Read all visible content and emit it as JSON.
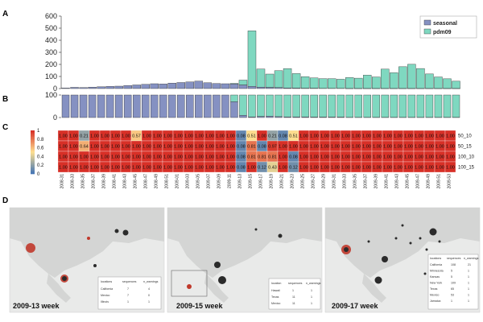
{
  "panel_letters": {
    "a": "A",
    "b": "B",
    "c": "C",
    "d": "D"
  },
  "colors": {
    "seasonal": "#8591c2",
    "pdm09": "#7fd8c0",
    "heat_high": "#d73027",
    "heat_mid": "#fee090",
    "heat_low": "#4575b4",
    "map_bg": "#e9eae9",
    "bubble_red": "#c0392b",
    "bubble_dark": "#2b2b2b"
  },
  "chart_data": [
    {
      "type": "bar",
      "id": "A",
      "stacked": true,
      "ylim": [
        0,
        600
      ],
      "yticks": [
        0,
        100,
        200,
        300,
        400,
        500,
        600
      ],
      "legend": "top-right",
      "series": [
        {
          "name": "seasonal",
          "values": [
            5,
            10,
            8,
            12,
            15,
            18,
            20,
            25,
            30,
            35,
            40,
            38,
            45,
            50,
            55,
            62,
            48,
            42,
            40,
            38,
            30,
            18,
            12,
            10,
            8,
            5,
            4,
            3,
            3,
            2,
            2,
            2,
            1,
            1,
            1,
            1,
            1,
            1,
            1,
            1,
            1,
            1,
            1,
            1,
            1
          ]
        },
        {
          "name": "pdm09",
          "values": [
            0,
            0,
            0,
            0,
            0,
            0,
            0,
            0,
            0,
            0,
            0,
            0,
            0,
            0,
            0,
            0,
            0,
            0,
            0,
            5,
            40,
            460,
            150,
            110,
            140,
            160,
            120,
            95,
            85,
            80,
            80,
            75,
            90,
            85,
            110,
            95,
            160,
            130,
            180,
            200,
            165,
            120,
            95,
            80,
            60
          ]
        }
      ]
    },
    {
      "type": "bar",
      "id": "B",
      "stacked": true,
      "ylim": [
        0,
        100
      ],
      "yticks": [
        0,
        100
      ],
      "series": [
        {
          "name": "seasonal",
          "values": [
            100,
            100,
            100,
            100,
            100,
            100,
            100,
            100,
            100,
            100,
            100,
            100,
            100,
            100,
            100,
            100,
            100,
            100,
            100,
            70,
            10,
            3,
            5,
            6,
            4,
            3,
            3,
            3,
            2,
            2,
            2,
            2,
            1,
            1,
            1,
            1,
            1,
            1,
            1,
            1,
            1,
            1,
            1,
            1,
            1
          ]
        },
        {
          "name": "pdm09",
          "values": [
            0,
            0,
            0,
            0,
            0,
            0,
            0,
            0,
            0,
            0,
            0,
            0,
            0,
            0,
            0,
            0,
            0,
            0,
            0,
            30,
            90,
            97,
            95,
            94,
            96,
            97,
            97,
            97,
            98,
            98,
            98,
            98,
            99,
            99,
            99,
            99,
            99,
            99,
            99,
            99,
            99,
            99,
            99,
            99,
            99
          ]
        }
      ]
    },
    {
      "type": "heatmap",
      "id": "C",
      "rows": [
        "50_10",
        "50_15",
        "100_10",
        "100_15"
      ],
      "columns": [
        "2008-31",
        "2008-33",
        "2008-35",
        "2008-37",
        "2008-39",
        "2008-41",
        "2008-43",
        "2008-45",
        "2008-47",
        "2008-49",
        "2008-51",
        "2009-01",
        "2009-03",
        "2009-05",
        "2009-07",
        "2009-09",
        "2009-11",
        "2009-13",
        "2009-15",
        "2009-17",
        "2009-19",
        "2009-21",
        "2009-23",
        "2009-25",
        "2009-27",
        "2009-29",
        "2009-31",
        "2009-33",
        "2009-35",
        "2009-37",
        "2009-39",
        "2009-41",
        "2009-43",
        "2009-45",
        "2009-47",
        "2009-49",
        "2009-51",
        "2009-53"
      ],
      "colorbar_ticks": [
        1,
        0.8,
        0.6,
        0.4,
        0.2,
        0
      ],
      "values": [
        [
          1,
          1,
          0.21,
          1,
          1,
          1,
          1,
          0.57,
          1,
          1,
          1,
          1,
          1,
          1,
          1,
          1,
          1,
          0.08,
          0.51,
          1,
          0.21,
          0.08,
          0.51,
          1,
          1,
          1,
          1,
          1,
          1,
          1,
          1,
          1,
          1,
          1,
          1,
          1,
          1,
          1
        ],
        [
          1,
          1,
          0.64,
          1,
          1,
          1,
          1,
          1,
          1,
          1,
          1,
          1,
          1,
          1,
          1,
          1,
          1,
          0.08,
          0.81,
          0.08,
          0.97,
          1,
          1,
          1,
          1,
          1,
          1,
          1,
          1,
          1,
          1,
          1,
          1,
          1,
          1,
          1,
          1,
          1
        ],
        [
          1,
          1,
          1,
          1,
          1,
          1,
          1,
          1,
          1,
          1,
          1,
          1,
          1,
          1,
          1,
          1,
          1,
          0.08,
          0.81,
          0.81,
          0.81,
          1,
          0.08,
          1,
          1,
          1,
          1,
          1,
          1,
          1,
          1,
          1,
          1,
          1,
          1,
          1,
          1,
          1
        ],
        [
          1,
          1,
          1,
          1,
          1,
          1,
          1,
          1,
          1,
          1,
          1,
          1,
          1,
          1,
          1,
          1,
          1,
          0.08,
          1,
          0.12,
          0.43,
          1,
          0.12,
          1,
          1,
          1,
          1,
          1,
          1,
          1,
          1,
          1,
          1,
          1,
          1,
          1,
          1,
          1
        ]
      ],
      "labels": [
        [
          "1.00",
          "1.00",
          "0.21",
          "1.00",
          "1.00",
          "1.00",
          "1.00",
          "0.57",
          "1.00",
          "1.00",
          "1.00",
          "1.00",
          "1.00",
          "1.00",
          "1.00",
          "1.00",
          "1.00",
          "0.08",
          "0.51",
          "1.00",
          "0.21",
          "0.08",
          "0.51",
          "1.00",
          "1.00",
          "1.00",
          "1.00",
          "1.00",
          "1.00",
          "1.00",
          "1.00",
          "1.00",
          "1.00",
          "1.00",
          "1.00",
          "1.00",
          "1.00",
          "1.00"
        ],
        [
          "1.00",
          "1.00",
          "0.64",
          "1.00",
          "1.00",
          "1.00",
          "1.00",
          "1.00",
          "1.00",
          "1.00",
          "1.00",
          "1.00",
          "1.00",
          "1.00",
          "1.00",
          "1.00",
          "1.00",
          "0.08",
          "0.81",
          "0.08",
          "0.97",
          "1.00",
          "1.00",
          "1.00",
          "1.00",
          "1.00",
          "1.00",
          "1.00",
          "1.00",
          "1.00",
          "1.00",
          "1.00",
          "1.00",
          "1.00",
          "1.00",
          "1.00",
          "1.00",
          "1.00"
        ],
        [
          "1.00",
          "1.00",
          "1.00",
          "1.00",
          "1.00",
          "1.00",
          "1.00",
          "1.00",
          "1.00",
          "1.00",
          "1.00",
          "1.00",
          "1.00",
          "1.00",
          "1.00",
          "1.00",
          "1.00",
          "0.08",
          "0.81",
          "0.81",
          "0.81",
          "1.00",
          "0.08",
          "1.00",
          "1.00",
          "1.00",
          "1.00",
          "1.00",
          "1.00",
          "1.00",
          "1.00",
          "1.00",
          "1.00",
          "1.00",
          "1.00",
          "1.00",
          "1.00",
          "1.00"
        ],
        [
          "1.00",
          "1.00",
          "1.00",
          "1.00",
          "1.00",
          "1.00",
          "1.00",
          "1.00",
          "1.00",
          "1.00",
          "1.00",
          "1.00",
          "1.00",
          "1.00",
          "1.00",
          "1.00",
          "1.00",
          "0.08",
          "1.00",
          "0.12",
          "0.43",
          "1.00",
          "0.12",
          "1.00",
          "1.00",
          "1.00",
          "1.00",
          "1.00",
          "1.00",
          "1.00",
          "1.00",
          "1.00",
          "1.00",
          "1.00",
          "1.00",
          "1.00",
          "1.00",
          "1.00"
        ]
      ]
    }
  ],
  "maps": [
    {
      "title": "2009-13 week",
      "table_header": [
        "locations",
        "sequences",
        "n_warnings"
      ],
      "table_rows": [
        [
          "California",
          "7",
          "4"
        ],
        [
          "Mexico",
          "7",
          "0"
        ],
        [
          "Illinois",
          "1",
          "1"
        ]
      ]
    },
    {
      "title": "2009-15 week",
      "table_header": [
        "location",
        "sequences",
        "n_warnings"
      ],
      "table_rows": [
        [
          "Hawaii",
          "1",
          "1"
        ],
        [
          "Texas",
          "11",
          "1"
        ],
        [
          "Mexico",
          "11",
          "1"
        ]
      ]
    },
    {
      "title": "2009-17 week",
      "table_header": [
        "locations",
        "sequences",
        "n_warnings"
      ],
      "table_rows": [
        [
          "California",
          "108",
          "21"
        ],
        [
          "Minnesota",
          "5",
          "1"
        ],
        [
          "Kansas",
          "5",
          "1"
        ],
        [
          "New York",
          "109",
          "1"
        ],
        [
          "Texas",
          "65",
          "1"
        ],
        [
          "Mexico",
          "53",
          "1"
        ],
        [
          "Jamaica",
          "1",
          "1"
        ]
      ]
    }
  ]
}
